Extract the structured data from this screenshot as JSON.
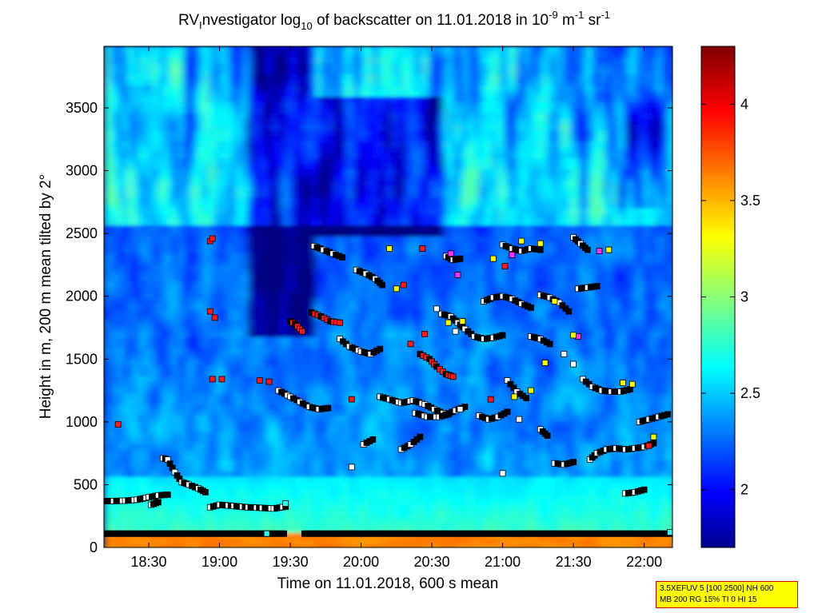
{
  "chart_data": {
    "type": "heatmap",
    "title": {
      "prefix": "RV",
      "sub1": "I",
      "mid": "nvestigator log",
      "sub2": "10",
      "rest": " of backscatter on 11.01.2018 in 10",
      "sup1": "-9",
      "unit1": " m",
      "sup2": "-1",
      "unit2": " sr",
      "sup3": "-1"
    },
    "xlabel": "Time on 11.01.2018, 600 s mean",
    "ylabel": "Height in m, 200 m mean tilted by 2°",
    "x_ticks": [
      "18:30",
      "19:00",
      "19:30",
      "20:00",
      "20:30",
      "21:00",
      "21:30",
      "22:00"
    ],
    "x_tick_minutes": [
      1110,
      1140,
      1170,
      1200,
      1230,
      1260,
      1290,
      1320
    ],
    "xlim_minutes": [
      1091,
      1332
    ],
    "ylim": [
      0,
      3990
    ],
    "y_ticks": [
      0,
      500,
      1000,
      1500,
      2000,
      2500,
      3000,
      3500
    ],
    "colorbar": {
      "ticks": [
        2,
        2.5,
        3,
        3.5,
        4
      ],
      "range": [
        1.7,
        4.3
      ]
    },
    "markers": {
      "surface_band_height": 110,
      "layer_tracks": [
        {
          "color": "black",
          "points": [
            [
              1091,
              370
            ],
            [
              1095,
              370
            ],
            [
              1100,
              372
            ],
            [
              1105,
              380
            ],
            [
              1110,
              400
            ],
            [
              1114,
              415
            ],
            [
              1118,
              420
            ]
          ]
        },
        {
          "color": "black",
          "points": [
            [
              1116,
              710
            ],
            [
              1118,
              700
            ],
            [
              1121,
              600
            ],
            [
              1124,
              520
            ],
            [
              1127,
              500
            ],
            [
              1131,
              470
            ],
            [
              1134,
              440
            ]
          ]
        },
        {
          "color": "black",
          "points": [
            [
              1136,
              320
            ],
            [
              1140,
              340
            ],
            [
              1146,
              330
            ],
            [
              1152,
              320
            ],
            [
              1158,
              315
            ],
            [
              1163,
              310
            ],
            [
              1168,
              325
            ]
          ]
        },
        {
          "color": "black",
          "points": [
            [
              1165,
              1250
            ],
            [
              1170,
              1200
            ],
            [
              1174,
              1160
            ],
            [
              1178,
              1120
            ],
            [
              1182,
              1100
            ],
            [
              1186,
              1110
            ]
          ]
        },
        {
          "color": "red",
          "points": [
            [
              1170,
              1800
            ],
            [
              1172,
              1780
            ],
            [
              1175,
              1720
            ]
          ]
        },
        {
          "color": "red",
          "points": [
            [
              1179,
              1870
            ],
            [
              1183,
              1840
            ],
            [
              1187,
              1800
            ],
            [
              1191,
              1790
            ]
          ]
        },
        {
          "color": "black",
          "points": [
            [
              1180,
              2400
            ],
            [
              1184,
              2370
            ],
            [
              1188,
              2340
            ],
            [
              1192,
              2310
            ]
          ]
        },
        {
          "color": "black",
          "points": [
            [
              1198,
              2210
            ],
            [
              1202,
              2180
            ],
            [
              1206,
              2140
            ],
            [
              1209,
              2090
            ]
          ]
        },
        {
          "color": "black",
          "points": [
            [
              1191,
              1660
            ],
            [
              1195,
              1600
            ],
            [
              1200,
              1560
            ],
            [
              1204,
              1540
            ],
            [
              1208,
              1580
            ]
          ]
        },
        {
          "color": "black",
          "points": [
            [
              1208,
              1200
            ],
            [
              1212,
              1180
            ],
            [
              1217,
              1150
            ],
            [
              1222,
              1170
            ],
            [
              1227,
              1140
            ],
            [
              1231,
              1100
            ],
            [
              1236,
              1060
            ],
            [
              1240,
              1090
            ],
            [
              1244,
              1120
            ]
          ]
        },
        {
          "color": "black",
          "points": [
            [
              1223,
              1070
            ],
            [
              1228,
              1040
            ],
            [
              1233,
              1040
            ],
            [
              1237,
              1060
            ]
          ]
        },
        {
          "color": "red",
          "points": [
            [
              1225,
              1540
            ],
            [
              1229,
              1500
            ],
            [
              1232,
              1440
            ],
            [
              1236,
              1380
            ],
            [
              1239,
              1360
            ]
          ]
        },
        {
          "color": "black",
          "points": [
            [
              1234,
              1860
            ],
            [
              1238,
              1840
            ],
            [
              1241,
              1790
            ],
            [
              1244,
              1740
            ],
            [
              1248,
              1680
            ],
            [
              1252,
              1660
            ],
            [
              1256,
              1670
            ],
            [
              1260,
              1690
            ]
          ]
        },
        {
          "color": "black",
          "points": [
            [
              1236,
              2320
            ],
            [
              1239,
              2290
            ],
            [
              1242,
              2300
            ]
          ]
        },
        {
          "color": "black",
          "points": [
            [
              1252,
              1960
            ],
            [
              1256,
              1990
            ],
            [
              1260,
              2000
            ],
            [
              1264,
              1980
            ],
            [
              1268,
              1940
            ],
            [
              1272,
              1910
            ]
          ]
        },
        {
          "color": "black",
          "points": [
            [
              1260,
              2410
            ],
            [
              1264,
              2380
            ],
            [
              1268,
              2360
            ],
            [
              1272,
              2380
            ],
            [
              1276,
              2370
            ]
          ]
        },
        {
          "color": "black",
          "points": [
            [
              1276,
              2010
            ],
            [
              1280,
              1990
            ],
            [
              1284,
              1950
            ],
            [
              1288,
              1880
            ]
          ]
        },
        {
          "color": "black",
          "points": [
            [
              1290,
              2470
            ],
            [
              1293,
              2420
            ],
            [
              1296,
              2370
            ]
          ]
        },
        {
          "color": "black",
          "points": [
            [
              1292,
              2060
            ],
            [
              1296,
              2070
            ],
            [
              1300,
              2080
            ]
          ]
        },
        {
          "color": "black",
          "points": [
            [
              1294,
              1340
            ],
            [
              1298,
              1280
            ],
            [
              1302,
              1250
            ],
            [
              1306,
              1240
            ],
            [
              1310,
              1240
            ],
            [
              1314,
              1260
            ]
          ]
        },
        {
          "color": "black",
          "points": [
            [
              1297,
              700
            ],
            [
              1300,
              750
            ],
            [
              1304,
              780
            ],
            [
              1308,
              790
            ],
            [
              1312,
              780
            ],
            [
              1316,
              790
            ],
            [
              1320,
              800
            ],
            [
              1324,
              830
            ]
          ]
        },
        {
          "color": "black",
          "points": [
            [
              1318,
              1000
            ],
            [
              1322,
              1020
            ],
            [
              1326,
              1040
            ],
            [
              1330,
              1060
            ]
          ]
        },
        {
          "color": "black",
          "points": [
            [
              1312,
              430
            ],
            [
              1316,
              440
            ],
            [
              1320,
              460
            ]
          ]
        },
        {
          "color": "black",
          "points": [
            [
              1111,
              340
            ],
            [
              1114,
              360
            ]
          ]
        },
        {
          "color": "black",
          "points": [
            [
              1201,
              820
            ],
            [
              1205,
              860
            ]
          ]
        },
        {
          "color": "black",
          "points": [
            [
              1217,
              780
            ],
            [
              1221,
              820
            ],
            [
              1225,
              880
            ]
          ]
        },
        {
          "color": "black",
          "points": [
            [
              1250,
              1050
            ],
            [
              1254,
              1020
            ],
            [
              1258,
              1040
            ],
            [
              1262,
              1080
            ]
          ]
        },
        {
          "color": "black",
          "points": [
            [
              1262,
              1330
            ],
            [
              1266,
              1240
            ],
            [
              1270,
              1190
            ]
          ]
        },
        {
          "color": "black",
          "points": [
            [
              1272,
              1680
            ],
            [
              1276,
              1660
            ],
            [
              1280,
              1620
            ]
          ]
        },
        {
          "color": "black",
          "points": [
            [
              1276,
              940
            ],
            [
              1279,
              890
            ]
          ]
        },
        {
          "color": "black",
          "points": [
            [
              1282,
              670
            ],
            [
              1286,
              660
            ],
            [
              1290,
              680
            ]
          ]
        }
      ],
      "singles": [
        {
          "color": "red",
          "x": 1097,
          "y": 980
        },
        {
          "color": "red",
          "x": 1136,
          "y": 2440
        },
        {
          "color": "red",
          "x": 1137,
          "y": 2460
        },
        {
          "color": "red",
          "x": 1136,
          "y": 1880
        },
        {
          "color": "red",
          "x": 1138,
          "y": 1830
        },
        {
          "color": "red",
          "x": 1137,
          "y": 1340
        },
        {
          "color": "red",
          "x": 1141,
          "y": 1340
        },
        {
          "color": "red",
          "x": 1157,
          "y": 1330
        },
        {
          "color": "red",
          "x": 1161,
          "y": 1320
        },
        {
          "color": "red",
          "x": 1196,
          "y": 1180
        },
        {
          "color": "white",
          "x": 1196,
          "y": 640
        },
        {
          "color": "white",
          "x": 1260,
          "y": 590
        },
        {
          "color": "yellow",
          "x": 1212,
          "y": 2380
        },
        {
          "color": "yellow",
          "x": 1215,
          "y": 2060
        },
        {
          "color": "red",
          "x": 1218,
          "y": 2090
        },
        {
          "color": "red",
          "x": 1226,
          "y": 2380
        },
        {
          "color": "magenta",
          "x": 1238,
          "y": 2340
        },
        {
          "color": "magenta",
          "x": 1241,
          "y": 2170
        },
        {
          "color": "yellow",
          "x": 1237,
          "y": 1790
        },
        {
          "color": "yellow",
          "x": 1243,
          "y": 1800
        },
        {
          "color": "white",
          "x": 1232,
          "y": 1900
        },
        {
          "color": "red",
          "x": 1221,
          "y": 1620
        },
        {
          "color": "red",
          "x": 1227,
          "y": 1700
        },
        {
          "color": "yellow",
          "x": 1256,
          "y": 2300
        },
        {
          "color": "magenta",
          "x": 1264,
          "y": 2330
        },
        {
          "color": "yellow",
          "x": 1268,
          "y": 2440
        },
        {
          "color": "red",
          "x": 1261,
          "y": 2240
        },
        {
          "color": "yellow",
          "x": 1276,
          "y": 2420
        },
        {
          "color": "yellow",
          "x": 1282,
          "y": 1960
        },
        {
          "color": "magenta",
          "x": 1292,
          "y": 1680
        },
        {
          "color": "yellow",
          "x": 1290,
          "y": 1690
        },
        {
          "color": "yellow",
          "x": 1305,
          "y": 2370
        },
        {
          "color": "magenta",
          "x": 1301,
          "y": 2360
        },
        {
          "color": "yellow",
          "x": 1311,
          "y": 1310
        },
        {
          "color": "yellow",
          "x": 1315,
          "y": 1300
        },
        {
          "color": "yellow",
          "x": 1324,
          "y": 880
        },
        {
          "color": "red",
          "x": 1322,
          "y": 810
        },
        {
          "color": "yellow",
          "x": 1278,
          "y": 1470
        },
        {
          "color": "white",
          "x": 1286,
          "y": 1540
        },
        {
          "color": "white",
          "x": 1290,
          "y": 1460
        },
        {
          "color": "yellow",
          "x": 1272,
          "y": 1250
        },
        {
          "color": "red",
          "x": 1255,
          "y": 1180
        },
        {
          "color": "white",
          "x": 1242,
          "y": 1100
        },
        {
          "color": "white",
          "x": 1240,
          "y": 1720
        },
        {
          "color": "yellow",
          "x": 1265,
          "y": 1200
        },
        {
          "color": "white",
          "x": 1267,
          "y": 1020
        },
        {
          "color": "cyan",
          "x": 1168,
          "y": 350
        },
        {
          "color": "cyan",
          "x": 1331,
          "y": 120
        },
        {
          "color": "cyan",
          "x": 1160,
          "y": 110
        }
      ]
    }
  },
  "info_box": {
    "line1": "3.5XEFUV 5 [100 2500] NH 600",
    "line2": "MB 200 RG 15% TI 0 HI 15"
  },
  "colors": {
    "jet_low": "#00008f",
    "jet_high": "#800000",
    "plot_frame": "#000000",
    "info_box_bg": "#ffff00",
    "info_box_border": "#cc0000"
  }
}
